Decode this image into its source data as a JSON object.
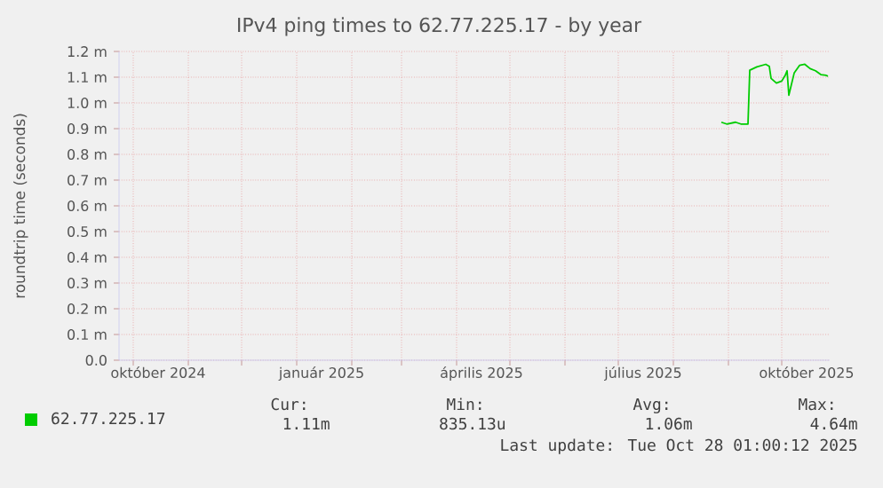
{
  "chart_data": {
    "type": "line",
    "title": "IPv4 ping times to 62.77.225.17 - by year",
    "ylabel": "roundtrip time (seconds)",
    "xlim": [
      "2024-09-23",
      "2025-10-28"
    ],
    "ylim": [
      0,
      1.2
    ],
    "xticks": [
      {
        "value": "2024-10-01",
        "label": null
      },
      {
        "value": "2024-11-01",
        "label": null
      },
      {
        "value": "2024-12-01",
        "label": null
      },
      {
        "value": "2025-01-01",
        "label": null
      },
      {
        "value": "2025-02-01",
        "label": null
      },
      {
        "value": "2025-03-01",
        "label": null
      },
      {
        "value": "2025-04-01",
        "label": null
      },
      {
        "value": "2025-05-01",
        "label": null
      },
      {
        "value": "2025-06-01",
        "label": null
      },
      {
        "value": "2025-07-01",
        "label": null
      },
      {
        "value": "2025-08-01",
        "label": null
      },
      {
        "value": "2025-09-01",
        "label": null
      },
      {
        "value": "2025-10-01",
        "label": null
      },
      {
        "value": "2024-10-15",
        "label": "október 2024"
      },
      {
        "value": "2025-01-15",
        "label": "január 2025"
      },
      {
        "value": "2025-04-15",
        "label": "április 2025"
      },
      {
        "value": "2025-07-15",
        "label": "július 2025"
      },
      {
        "value": "2025-10-15",
        "label": "október 2025"
      }
    ],
    "yticks": [
      {
        "value": 0,
        "label": "0.0"
      },
      {
        "value": 0.1,
        "label": "0.1 m"
      },
      {
        "value": 0.2,
        "label": "0.2 m"
      },
      {
        "value": 0.3,
        "label": "0.3 m"
      },
      {
        "value": 0.4,
        "label": "0.4 m"
      },
      {
        "value": 0.5,
        "label": "0.5 m"
      },
      {
        "value": 0.6,
        "label": "0.6 m"
      },
      {
        "value": 0.7,
        "label": "0.7 m"
      },
      {
        "value": 0.8,
        "label": "0.8 m"
      },
      {
        "value": 0.9,
        "label": "0.9 m"
      },
      {
        "value": 1.0,
        "label": "1.0 m"
      },
      {
        "value": 1.1,
        "label": "1.1 m"
      },
      {
        "value": 1.2,
        "label": "1.2 m"
      }
    ],
    "grid": true,
    "legend": "bottom",
    "marker": "none",
    "line_style": "solid",
    "series": [
      {
        "name": "62.77.225.17",
        "color": "#00cc00",
        "x": [
          "2025-08-28",
          "2025-08-31",
          "2025-09-05",
          "2025-09-08",
          "2025-09-12",
          "2025-09-13",
          "2025-09-17",
          "2025-09-22",
          "2025-09-24",
          "2025-09-25",
          "2025-09-28",
          "2025-10-01",
          "2025-10-03",
          "2025-10-04",
          "2025-10-05",
          "2025-10-08",
          "2025-10-11",
          "2025-10-14",
          "2025-10-17",
          "2025-10-20",
          "2025-10-23",
          "2025-10-26",
          "2025-10-27"
        ],
        "values": [
          0.925,
          0.918,
          0.925,
          0.918,
          0.918,
          1.127,
          1.14,
          1.15,
          1.142,
          1.095,
          1.077,
          1.085,
          1.108,
          1.125,
          1.03,
          1.116,
          1.146,
          1.15,
          1.133,
          1.125,
          1.11,
          1.107,
          1.104
        ]
      }
    ],
    "annotations": [
      "Cur:",
      "1.11m",
      "Min:",
      "835.13u",
      "Avg:",
      "1.06m",
      "Max:",
      "4.64m",
      "Last update: Tue Oct 28 01:00:12 2025"
    ]
  }
}
